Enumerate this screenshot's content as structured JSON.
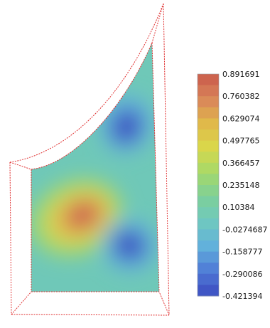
{
  "chart_data": {
    "type": "heatmap",
    "title": "",
    "xlabel": "",
    "ylabel": "",
    "grid": false,
    "legend_placement": "right",
    "colorbar": {
      "ticks": [
        0.891691,
        0.760382,
        0.629074,
        0.497765,
        0.366457,
        0.235148,
        0.10384,
        -0.0274687,
        -0.158777,
        -0.290086,
        -0.421394
      ],
      "tick_labels": [
        "0.891691",
        "0.760382",
        "0.629074",
        "0.497765",
        "0.366457",
        "0.235148",
        "0.10384",
        "-0.0274687",
        "-0.158777",
        "-0.290086",
        "-0.421394"
      ],
      "min": -0.421394,
      "max": 0.891691,
      "bands": 20
    },
    "colormap": [
      "#3b4cc0",
      "#4f7ad6",
      "#62b0dc",
      "#6fc8c0",
      "#7ccf9a",
      "#a6d96a",
      "#d9d84a",
      "#e0b84a",
      "#d9855a",
      "#c95a4a"
    ],
    "features": [
      {
        "kind": "maximum",
        "value": 0.891691
      },
      {
        "kind": "minimum",
        "value": -0.421394
      },
      {
        "kind": "minimum",
        "value": -0.421394
      }
    ],
    "frame_color": "#e03030"
  }
}
